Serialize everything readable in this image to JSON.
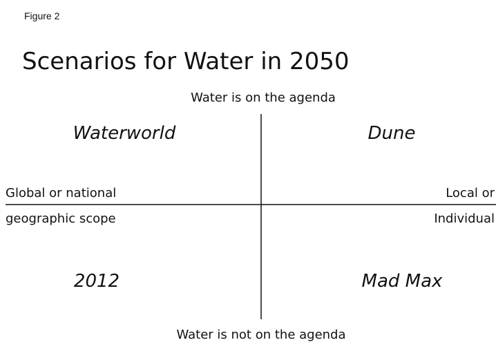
{
  "figure_label": "Figure 2",
  "title": "Scenarios for Water in 2050",
  "axes": {
    "top": "Water is on the agenda",
    "bottom": "Water is not on the agenda",
    "left": [
      "Global or national",
      "geographic scope"
    ],
    "right": [
      "Local or",
      "Individual"
    ]
  },
  "quadrants": {
    "top_left": "Waterworld",
    "top_right": "Dune",
    "bottom_left": "2012",
    "bottom_right": "Mad Max"
  }
}
